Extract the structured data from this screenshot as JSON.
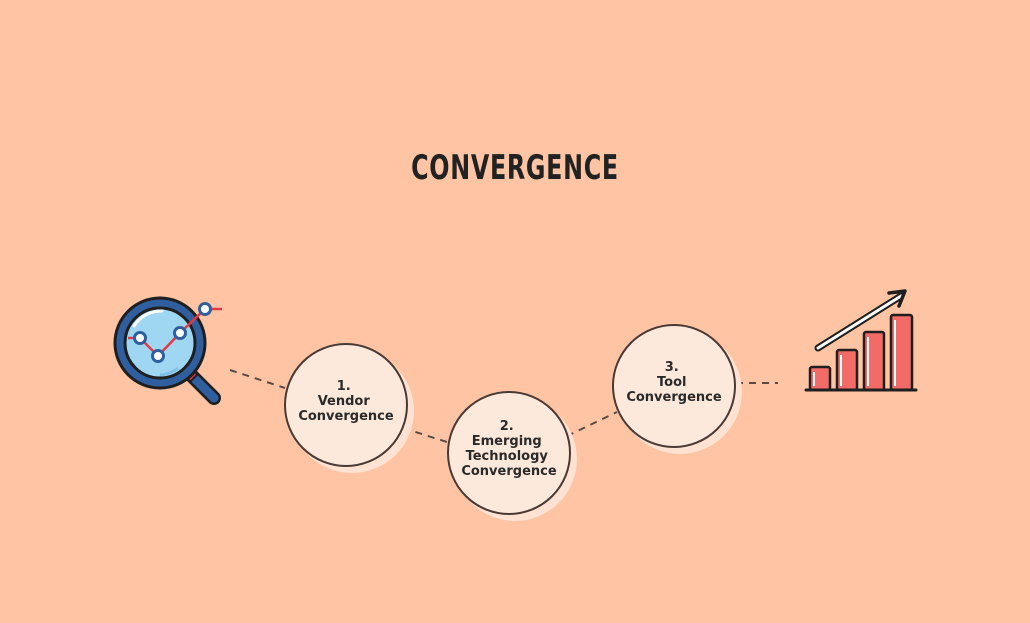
{
  "title": "CONVERGENCE",
  "colors": {
    "background": "#ffc4a3",
    "circle_fill": "#fde8dc",
    "circle_shadow": "#ffe2d1",
    "outline": "#4a3a35",
    "bar_fill": "#f26b67",
    "lens_fill": "#9fd6f2",
    "handle": "#2f5f9e",
    "graph_line": "#e23a44"
  },
  "icons": {
    "left": "magnifier-analytics-icon",
    "right": "growth-bar-chart-icon"
  },
  "steps": [
    {
      "number": "1.",
      "lines": [
        "Vendor",
        "Convergence"
      ]
    },
    {
      "number": "2.",
      "lines": [
        "Emerging",
        "Technology",
        "Convergence"
      ]
    },
    {
      "number": "3.",
      "lines": [
        "Tool",
        "Convergence"
      ]
    }
  ]
}
